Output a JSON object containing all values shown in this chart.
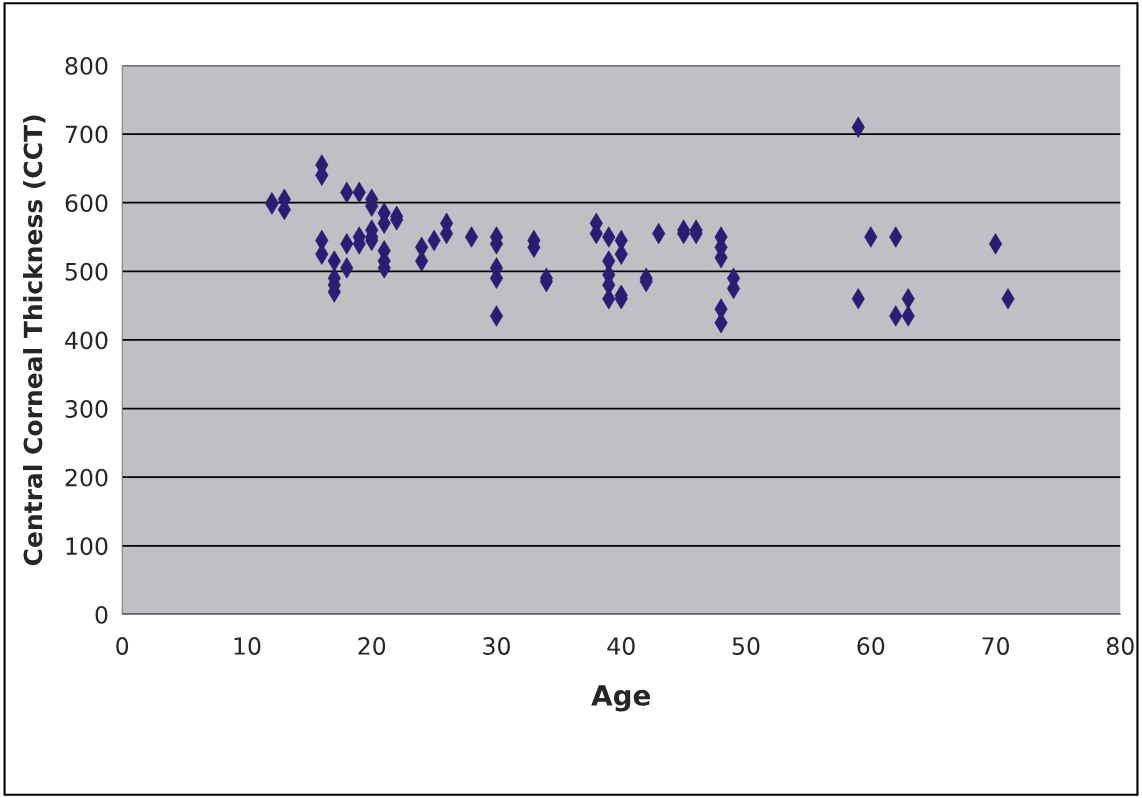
{
  "chart_data": {
    "type": "scatter",
    "xlabel": "Age",
    "ylabel": "Central Corneal Thickness (CCT)",
    "x": [
      12,
      12,
      13,
      13,
      16,
      16,
      16,
      16,
      17,
      17,
      17,
      17,
      18,
      18,
      18,
      19,
      19,
      19,
      20,
      20,
      20,
      20,
      20,
      21,
      21,
      21,
      21,
      21,
      22,
      22,
      24,
      24,
      25,
      26,
      26,
      28,
      30,
      30,
      30,
      30,
      30,
      33,
      33,
      34,
      34,
      38,
      38,
      39,
      39,
      39,
      39,
      39,
      40,
      40,
      40,
      40,
      42,
      42,
      43,
      45,
      45,
      46,
      46,
      48,
      48,
      48,
      48,
      48,
      49,
      49,
      59,
      59,
      60,
      62,
      62,
      63,
      63,
      70,
      71
    ],
    "series": [
      {
        "color": "#2b1d74",
        "values": [
          600,
          598,
          605,
          590,
          655,
          640,
          545,
          525,
          515,
          490,
          480,
          470,
          615,
          540,
          505,
          615,
          550,
          540,
          605,
          595,
          560,
          550,
          545,
          585,
          570,
          530,
          515,
          505,
          580,
          575,
          535,
          515,
          545,
          570,
          555,
          550,
          550,
          540,
          505,
          490,
          435,
          545,
          535,
          490,
          485,
          570,
          555,
          550,
          515,
          495,
          480,
          460,
          545,
          525,
          465,
          460,
          490,
          485,
          555,
          560,
          555,
          560,
          555,
          550,
          535,
          520,
          445,
          425,
          490,
          475,
          710,
          460,
          550,
          550,
          435,
          460,
          435,
          540,
          460
        ]
      }
    ],
    "xlim": [
      0,
      80
    ],
    "xticks": [
      0,
      10,
      20,
      30,
      40,
      50,
      60,
      70,
      80
    ],
    "ylim": [
      0,
      800
    ],
    "yticks": [
      0,
      100,
      200,
      300,
      400,
      500,
      600,
      700,
      800
    ],
    "grid": "y",
    "marker": "diamond",
    "legend": false
  }
}
